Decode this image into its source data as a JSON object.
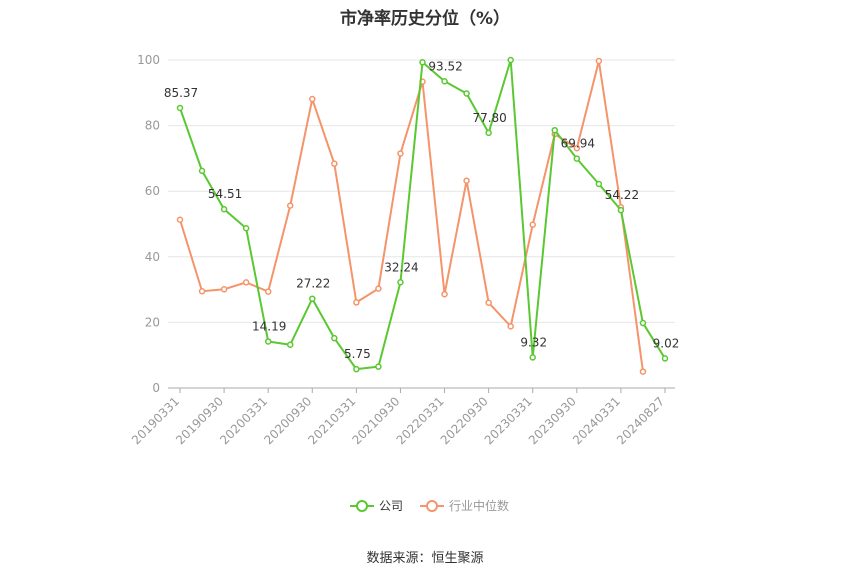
{
  "chart_data": {
    "type": "line",
    "title": "市净率历史分位（%）",
    "x": [
      "20190331",
      "20190630",
      "20190930",
      "20191231",
      "20200331",
      "20200630",
      "20200930",
      "20201231",
      "20210331",
      "20210630",
      "20210930",
      "20211231",
      "20220331",
      "20220630",
      "20220930",
      "20221231",
      "20230331",
      "20230630",
      "20230930",
      "20231231",
      "20240331",
      "20240630",
      "20240827"
    ],
    "x_tick_labels": [
      "20190331",
      "20190930",
      "20200331",
      "20200930",
      "20210331",
      "20210930",
      "20220331",
      "20220930",
      "20230331",
      "20230930",
      "20240331",
      "20240827"
    ],
    "ylim": [
      0,
      100
    ],
    "yticks": [
      0,
      20,
      40,
      60,
      80,
      100
    ],
    "grid": true,
    "legend_position": "bottom",
    "series": [
      {
        "name": "公司",
        "color": "#5ac832",
        "values": [
          85.37,
          66.2,
          54.51,
          48.7,
          14.19,
          13.2,
          27.22,
          15.2,
          5.75,
          6.5,
          32.24,
          99.3,
          93.52,
          89.8,
          77.8,
          100,
          9.32,
          78.6,
          69.94,
          62.2,
          54.22,
          19.8,
          9.02
        ],
        "labels": [
          "85.37",
          null,
          "54.51",
          null,
          "14.19",
          null,
          "27.22",
          null,
          "5.75",
          null,
          "32.24",
          null,
          "93.52",
          null,
          "77.80",
          null,
          "9.32",
          null,
          "69.94",
          null,
          "54.22",
          null,
          "9.02"
        ]
      },
      {
        "name": "行业中位数",
        "color": "#f5946a",
        "values": [
          51.3,
          29.5,
          30.1,
          32.2,
          29.4,
          55.6,
          88.1,
          68.4,
          26.1,
          30.3,
          71.5,
          93.4,
          28.6,
          63.2,
          26.0,
          18.8,
          49.8,
          77.4,
          73.1,
          99.7,
          55.1,
          5.0,
          null
        ]
      }
    ]
  },
  "source": "数据来源：恒生聚源"
}
